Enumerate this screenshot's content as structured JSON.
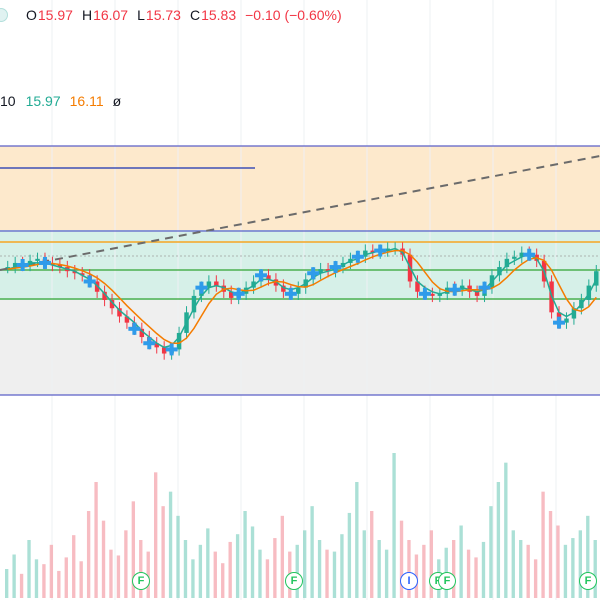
{
  "legend": {
    "open_label": "O",
    "open": "15.97",
    "high_label": "H",
    "high": "16.07",
    "low_label": "L",
    "low": "15.73",
    "close_label": "C",
    "close": "15.83",
    "change": "−0.10 (−0.60%)"
  },
  "ma_legend": {
    "period_tail": "10",
    "ma_fast": "15.97",
    "ma_slow": "16.11",
    "symbol": "ø"
  },
  "markers": [
    {
      "type": "F",
      "label": "F"
    },
    {
      "type": "F",
      "label": "F"
    },
    {
      "type": "I",
      "label": "I"
    },
    {
      "type": "F",
      "label": "F"
    },
    {
      "type": "F",
      "label": "F"
    },
    {
      "type": "F",
      "label": "F"
    }
  ],
  "colors": {
    "up": "#22ab94",
    "down": "#f23645",
    "ma_fast": "#22ab94",
    "ma_slow": "#f57c00",
    "zone_upper": "#fde9cc",
    "zone_mid": "#d6f0e8",
    "zone_lower": "#efefef",
    "signal": "#2f9bea",
    "level_line": "#5b5fc7"
  },
  "chart_data": {
    "type": "candlestick",
    "price_series": [
      16.12,
      16.14,
      16.13,
      16.15,
      16.16,
      16.14,
      16.13,
      16.12,
      16.1,
      16.09,
      16.08,
      16.05,
      16.0,
      15.96,
      15.92,
      15.88,
      15.85,
      15.82,
      15.78,
      15.75,
      15.73,
      15.7,
      15.72,
      15.8,
      15.9,
      15.98,
      16.02,
      16.05,
      16.03,
      16.0,
      15.97,
      15.99,
      16.02,
      16.05,
      16.08,
      16.06,
      16.03,
      16.0,
      15.99,
      16.02,
      16.06,
      16.09,
      16.11,
      16.1,
      16.12,
      16.14,
      16.16,
      16.17,
      16.2,
      16.19,
      16.2,
      16.21,
      16.21,
      16.18,
      16.05,
      16.0,
      15.99,
      15.98,
      15.99,
      16.02,
      16.01,
      16.03,
      16.0,
      15.98,
      16.02,
      16.08,
      16.12,
      16.16,
      16.17,
      16.19,
      16.18,
      16.15,
      16.05,
      15.9,
      15.85,
      15.87,
      15.92,
      15.96,
      16.03,
      16.1
    ],
    "ma_fast_series": [
      16.11,
      16.12,
      16.13,
      16.14,
      16.14,
      16.14,
      16.13,
      16.12,
      16.11,
      16.1,
      16.08,
      16.06,
      16.03,
      15.99,
      15.95,
      15.91,
      15.88,
      15.85,
      15.81,
      15.78,
      15.75,
      15.73,
      15.74,
      15.78,
      15.85,
      15.92,
      15.98,
      16.02,
      16.03,
      16.02,
      16.0,
      15.99,
      16.01,
      16.03,
      16.06,
      16.06,
      16.05,
      16.02,
      16.01,
      16.02,
      16.04,
      16.07,
      16.09,
      16.1,
      16.11,
      16.13,
      16.15,
      16.16,
      16.18,
      16.19,
      16.2,
      16.2,
      16.21,
      16.19,
      16.12,
      16.05,
      16.02,
      16.0,
      15.99,
      16.0,
      16.01,
      16.02,
      16.01,
      16.0,
      16.01,
      16.05,
      16.09,
      16.13,
      16.15,
      16.17,
      16.18,
      16.16,
      16.1,
      15.98,
      15.9,
      15.88,
      15.9,
      15.94,
      15.99,
      16.06
    ],
    "volume_series": [
      30,
      45,
      25,
      60,
      40,
      35,
      55,
      28,
      42,
      65,
      38,
      90,
      120,
      80,
      50,
      44,
      70,
      100,
      60,
      48,
      130,
      95,
      110,
      85,
      60,
      40,
      55,
      72,
      48,
      36,
      58,
      66,
      90,
      74,
      50,
      40,
      62,
      85,
      48,
      55,
      70,
      95,
      60,
      50,
      48,
      66,
      88,
      120,
      70,
      90,
      60,
      50,
      150,
      80,
      60,
      45,
      55,
      70,
      40,
      52,
      60,
      75,
      50,
      42,
      58,
      95,
      120,
      140,
      70,
      60,
      55,
      40,
      110,
      90,
      75,
      55,
      62,
      70,
      85,
      60
    ],
    "signals": [
      2,
      5,
      11,
      17,
      19,
      22,
      26,
      31,
      34,
      38,
      41,
      44,
      47,
      50,
      56,
      60,
      64,
      70,
      74
    ]
  }
}
